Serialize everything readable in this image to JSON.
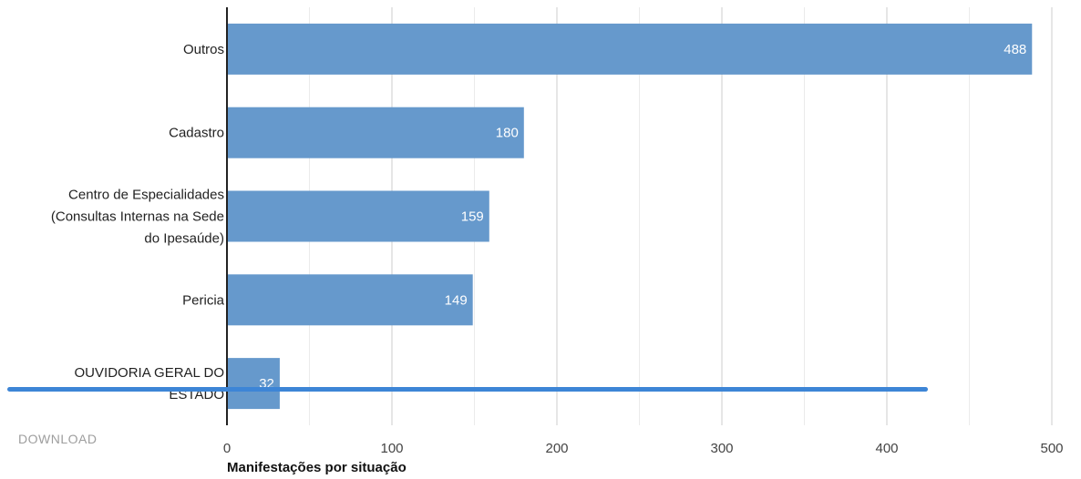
{
  "chart_data": {
    "type": "bar",
    "orientation": "horizontal",
    "categories": [
      [
        "Outros"
      ],
      [
        "Cadastro"
      ],
      [
        "Centro de Especialidades",
        "(Consultas Internas na Sede",
        "do Ipesaúde)"
      ],
      [
        "Pericia"
      ],
      [
        "OUVIDORIA GERAL DO",
        "ESTADO"
      ]
    ],
    "values": [
      488,
      180,
      159,
      149,
      32
    ],
    "xlabel": "Manifestações por situação",
    "xlim": [
      0,
      500
    ],
    "xticks": [
      0,
      100,
      200,
      300,
      400,
      500
    ],
    "grid": true,
    "bar_color": "#6699cc",
    "grid_color": "#cccccc",
    "axis_color": "#222222"
  },
  "download_label": "DOWNLOAD",
  "scrollbar_color": "#3d85d6"
}
